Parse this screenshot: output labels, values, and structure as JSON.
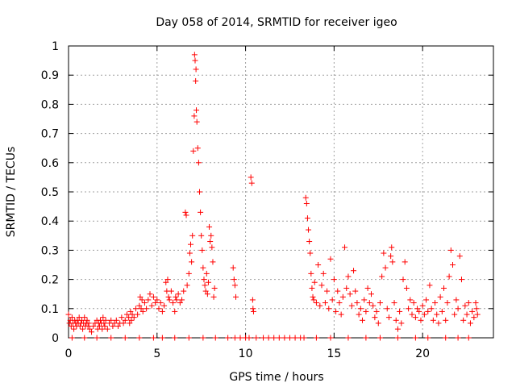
{
  "chart_data": {
    "type": "scatter",
    "title": "Day 058 of 2014, SRMTID for receiver igeo",
    "xlabel": "GPS time / hours",
    "ylabel": "SRMTID / TECUs",
    "xlim": [
      0,
      24
    ],
    "ylim": [
      0,
      1
    ],
    "xticks": [
      0,
      5,
      10,
      15,
      20
    ],
    "xtick_labels": [
      "0",
      "5",
      "10",
      "15",
      "20"
    ],
    "yticks": [
      0,
      0.1,
      0.2,
      0.3,
      0.4,
      0.5,
      0.6,
      0.7,
      0.8,
      0.9,
      1
    ],
    "ytick_labels": [
      "0",
      "0.1",
      "0.2",
      "0.3",
      "0.4",
      "0.5",
      "0.6",
      "0.7",
      "0.8",
      "0.9",
      "1"
    ],
    "grid": true,
    "marker": "+",
    "color": "#ff0000",
    "series": [
      {
        "name": "SRMTID",
        "points": [
          [
            0.0,
            0.08
          ],
          [
            0.05,
            0.05
          ],
          [
            0.1,
            0.06
          ],
          [
            0.15,
            0.04
          ],
          [
            0.2,
            0.07
          ],
          [
            0.25,
            0.05
          ],
          [
            0.3,
            0.03
          ],
          [
            0.35,
            0.06
          ],
          [
            0.4,
            0.05
          ],
          [
            0.45,
            0.04
          ],
          [
            0.5,
            0.06
          ],
          [
            0.55,
            0.05
          ],
          [
            0.6,
            0.07
          ],
          [
            0.65,
            0.04
          ],
          [
            0.7,
            0.05
          ],
          [
            0.75,
            0.06
          ],
          [
            0.8,
            0.03
          ],
          [
            0.85,
            0.05
          ],
          [
            0.9,
            0.07
          ],
          [
            0.95,
            0.04
          ],
          [
            1.0,
            0.05
          ],
          [
            1.05,
            0.06
          ],
          [
            1.1,
            0.04
          ],
          [
            1.15,
            0.05
          ],
          [
            1.2,
            0.03
          ],
          [
            1.3,
            0.02
          ],
          [
            1.4,
            0.04
          ],
          [
            1.5,
            0.05
          ],
          [
            1.6,
            0.06
          ],
          [
            1.65,
            0.03
          ],
          [
            1.7,
            0.05
          ],
          [
            1.75,
            0.04
          ],
          [
            1.8,
            0.06
          ],
          [
            1.85,
            0.05
          ],
          [
            1.9,
            0.03
          ],
          [
            1.95,
            0.07
          ],
          [
            2.0,
            0.05
          ],
          [
            2.05,
            0.04
          ],
          [
            2.1,
            0.06
          ],
          [
            2.2,
            0.03
          ],
          [
            2.3,
            0.05
          ],
          [
            2.4,
            0.06
          ],
          [
            2.5,
            0.04
          ],
          [
            2.6,
            0.05
          ],
          [
            2.7,
            0.06
          ],
          [
            2.8,
            0.04
          ],
          [
            2.9,
            0.05
          ],
          [
            3.0,
            0.07
          ],
          [
            3.1,
            0.05
          ],
          [
            3.2,
            0.06
          ],
          [
            3.3,
            0.08
          ],
          [
            3.4,
            0.07
          ],
          [
            3.45,
            0.05
          ],
          [
            3.5,
            0.09
          ],
          [
            3.55,
            0.06
          ],
          [
            3.6,
            0.08
          ],
          [
            3.7,
            0.07
          ],
          [
            3.8,
            0.1
          ],
          [
            3.9,
            0.08
          ],
          [
            4.0,
            0.11
          ],
          [
            4.05,
            0.14
          ],
          [
            4.1,
            0.1
          ],
          [
            4.15,
            0.13
          ],
          [
            4.2,
            0.09
          ],
          [
            4.3,
            0.12
          ],
          [
            4.4,
            0.1
          ],
          [
            4.5,
            0.13
          ],
          [
            4.6,
            0.15
          ],
          [
            4.7,
            0.11
          ],
          [
            4.8,
            0.14
          ],
          [
            4.9,
            0.12
          ],
          [
            5.0,
            0.13
          ],
          [
            5.1,
            0.1
          ],
          [
            5.2,
            0.12
          ],
          [
            5.3,
            0.09
          ],
          [
            5.4,
            0.11
          ],
          [
            5.5,
            0.19
          ],
          [
            5.55,
            0.16
          ],
          [
            5.6,
            0.2
          ],
          [
            5.65,
            0.14
          ],
          [
            5.7,
            0.13
          ],
          [
            5.8,
            0.16
          ],
          [
            5.9,
            0.12
          ],
          [
            6.0,
            0.09
          ],
          [
            6.05,
            0.14
          ],
          [
            6.1,
            0.13
          ],
          [
            6.2,
            0.15
          ],
          [
            6.3,
            0.12
          ],
          [
            6.4,
            0.13
          ],
          [
            6.5,
            0.16
          ],
          [
            6.6,
            0.43
          ],
          [
            6.65,
            0.42
          ],
          [
            6.7,
            0.18
          ],
          [
            6.8,
            0.22
          ],
          [
            6.85,
            0.29
          ],
          [
            6.9,
            0.32
          ],
          [
            6.95,
            0.26
          ],
          [
            7.0,
            0.35
          ],
          [
            7.05,
            0.64
          ],
          [
            7.1,
            0.76
          ],
          [
            7.12,
            0.97
          ],
          [
            7.15,
            0.95
          ],
          [
            7.18,
            0.88
          ],
          [
            7.2,
            0.92
          ],
          [
            7.22,
            0.78
          ],
          [
            7.25,
            0.74
          ],
          [
            7.3,
            0.65
          ],
          [
            7.35,
            0.6
          ],
          [
            7.4,
            0.5
          ],
          [
            7.45,
            0.43
          ],
          [
            7.5,
            0.35
          ],
          [
            7.55,
            0.3
          ],
          [
            7.6,
            0.24
          ],
          [
            7.65,
            0.2
          ],
          [
            7.7,
            0.18
          ],
          [
            7.75,
            0.16
          ],
          [
            7.8,
            0.22
          ],
          [
            7.85,
            0.15
          ],
          [
            7.9,
            0.19
          ],
          [
            7.95,
            0.38
          ],
          [
            8.0,
            0.33
          ],
          [
            8.05,
            0.35
          ],
          [
            8.1,
            0.31
          ],
          [
            8.15,
            0.26
          ],
          [
            8.2,
            0.14
          ],
          [
            8.25,
            0.17
          ],
          [
            9.3,
            0.24
          ],
          [
            9.35,
            0.2
          ],
          [
            9.4,
            0.18
          ],
          [
            9.45,
            0.14
          ],
          [
            10.3,
            0.55
          ],
          [
            10.35,
            0.53
          ],
          [
            10.4,
            0.13
          ],
          [
            10.42,
            0.1
          ],
          [
            10.45,
            0.09
          ],
          [
            13.4,
            0.48
          ],
          [
            13.45,
            0.46
          ],
          [
            13.5,
            0.41
          ],
          [
            13.55,
            0.37
          ],
          [
            13.6,
            0.33
          ],
          [
            13.65,
            0.29
          ],
          [
            13.7,
            0.22
          ],
          [
            13.75,
            0.17
          ],
          [
            13.8,
            0.14
          ],
          [
            13.85,
            0.13
          ],
          [
            13.9,
            0.19
          ],
          [
            14.0,
            0.12
          ],
          [
            14.1,
            0.25
          ],
          [
            14.2,
            0.11
          ],
          [
            14.3,
            0.18
          ],
          [
            14.4,
            0.22
          ],
          [
            14.5,
            0.12
          ],
          [
            14.6,
            0.16
          ],
          [
            14.7,
            0.1
          ],
          [
            14.8,
            0.27
          ],
          [
            14.9,
            0.13
          ],
          [
            15.0,
            0.2
          ],
          [
            15.1,
            0.09
          ],
          [
            15.2,
            0.16
          ],
          [
            15.3,
            0.12
          ],
          [
            15.4,
            0.08
          ],
          [
            15.5,
            0.14
          ],
          [
            15.6,
            0.31
          ],
          [
            15.7,
            0.17
          ],
          [
            15.8,
            0.21
          ],
          [
            15.9,
            0.15
          ],
          [
            16.0,
            0.11
          ],
          [
            16.1,
            0.23
          ],
          [
            16.2,
            0.16
          ],
          [
            16.3,
            0.12
          ],
          [
            16.4,
            0.08
          ],
          [
            16.5,
            0.1
          ],
          [
            16.6,
            0.06
          ],
          [
            16.7,
            0.13
          ],
          [
            16.8,
            0.09
          ],
          [
            16.9,
            0.17
          ],
          [
            17.0,
            0.12
          ],
          [
            17.1,
            0.15
          ],
          [
            17.2,
            0.11
          ],
          [
            17.3,
            0.07
          ],
          [
            17.4,
            0.09
          ],
          [
            17.5,
            0.05
          ],
          [
            17.6,
            0.12
          ],
          [
            17.7,
            0.21
          ],
          [
            17.8,
            0.29
          ],
          [
            17.9,
            0.24
          ],
          [
            18.0,
            0.1
          ],
          [
            18.1,
            0.07
          ],
          [
            18.2,
            0.28
          ],
          [
            18.25,
            0.31
          ],
          [
            18.3,
            0.26
          ],
          [
            18.4,
            0.12
          ],
          [
            18.5,
            0.06
          ],
          [
            18.6,
            0.03
          ],
          [
            18.7,
            0.09
          ],
          [
            18.8,
            0.05
          ],
          [
            18.9,
            0.2
          ],
          [
            19.0,
            0.26
          ],
          [
            19.1,
            0.17
          ],
          [
            19.2,
            0.1
          ],
          [
            19.3,
            0.13
          ],
          [
            19.4,
            0.08
          ],
          [
            19.5,
            0.12
          ],
          [
            19.6,
            0.07
          ],
          [
            19.7,
            0.1
          ],
          [
            19.8,
            0.09
          ],
          [
            19.9,
            0.06
          ],
          [
            20.0,
            0.11
          ],
          [
            20.1,
            0.08
          ],
          [
            20.2,
            0.13
          ],
          [
            20.3,
            0.09
          ],
          [
            20.4,
            0.18
          ],
          [
            20.5,
            0.1
          ],
          [
            20.6,
            0.06
          ],
          [
            20.7,
            0.12
          ],
          [
            20.8,
            0.08
          ],
          [
            20.9,
            0.05
          ],
          [
            21.0,
            0.14
          ],
          [
            21.1,
            0.09
          ],
          [
            21.2,
            0.17
          ],
          [
            21.3,
            0.06
          ],
          [
            21.4,
            0.12
          ],
          [
            21.5,
            0.21
          ],
          [
            21.6,
            0.3
          ],
          [
            21.7,
            0.25
          ],
          [
            21.8,
            0.08
          ],
          [
            21.9,
            0.13
          ],
          [
            22.0,
            0.1
          ],
          [
            22.1,
            0.28
          ],
          [
            22.2,
            0.2
          ],
          [
            22.3,
            0.06
          ],
          [
            22.4,
            0.11
          ],
          [
            22.5,
            0.08
          ],
          [
            22.6,
            0.12
          ],
          [
            22.7,
            0.05
          ],
          [
            22.8,
            0.09
          ],
          [
            22.9,
            0.07
          ],
          [
            23.0,
            0.12
          ],
          [
            23.05,
            0.1
          ],
          [
            23.1,
            0.08
          ]
        ],
        "baseline_zero_times": [
          0.2,
          0.9,
          1.6,
          2.4,
          3.2,
          4.0,
          4.8,
          5.3,
          6.0,
          6.8,
          7.6,
          8.3,
          9.0,
          9.4,
          9.7,
          10.0,
          10.2,
          10.6,
          11.0,
          11.3,
          11.6,
          11.9,
          12.2,
          12.5,
          12.8,
          13.1,
          13.3,
          14.0,
          14.8,
          15.8,
          16.8,
          17.6,
          18.6,
          19.6,
          20.3,
          21.3,
          22.0,
          22.6
        ]
      }
    ]
  }
}
